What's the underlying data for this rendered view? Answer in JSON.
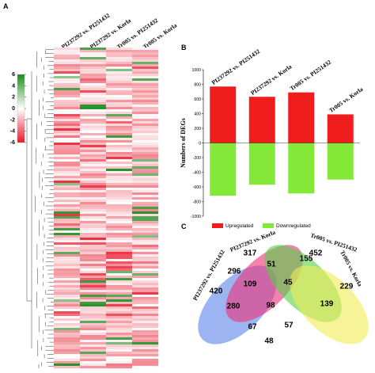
{
  "panels": {
    "a": "A",
    "b": "B",
    "c": "C"
  },
  "colors": {
    "up": "#ef1d1d",
    "down": "#84e838",
    "heat_low": "#e8192c",
    "heat_mid": "#ffffff",
    "heat_high": "#1b8b1e",
    "venn": [
      "#5a82e8",
      "#f0307a",
      "#55d046",
      "#f0eb55"
    ]
  },
  "heatmap": {
    "columns": [
      "PI237292 vs. PI251432",
      "PI237292 vs. Korla",
      "Tr005 vs. PI251432",
      "Tr005 vs. Korla"
    ],
    "colorbar_ticks": [
      "6",
      "4",
      "2",
      "0",
      "-2",
      "-4",
      "-6"
    ]
  },
  "chart_data": [
    {
      "type": "bar",
      "categories": [
        "PI237292 vs. PI251432",
        "PI237292 vs. Korla",
        "Tr005 vs. PI251432",
        "Tr005 vs. Korla"
      ],
      "series": [
        {
          "name": "Upregulated",
          "values": [
            770,
            630,
            690,
            390
          ]
        },
        {
          "name": "Downregulated",
          "values": [
            -720,
            -570,
            -690,
            -500
          ]
        }
      ],
      "ylabel": "Numbers of DEGs",
      "ylim": [
        -1000,
        1000
      ],
      "yticks": [
        "1000",
        "800",
        "600",
        "400",
        "200",
        "0",
        "-200",
        "-400",
        "-600",
        "-800",
        "-1000"
      ],
      "legend": "bottom"
    },
    {
      "type": "venn",
      "sets": [
        "PI237292 vs. PI251432",
        "PI237292 vs. Korla",
        "Tr005 vs. PI251432",
        "Tr005 vs. Korla"
      ],
      "counts": [
        "420",
        "317",
        "452",
        "229",
        "296",
        "51",
        "155",
        "109",
        "45",
        "139",
        "280",
        "98",
        "67",
        "57",
        "48"
      ]
    }
  ]
}
